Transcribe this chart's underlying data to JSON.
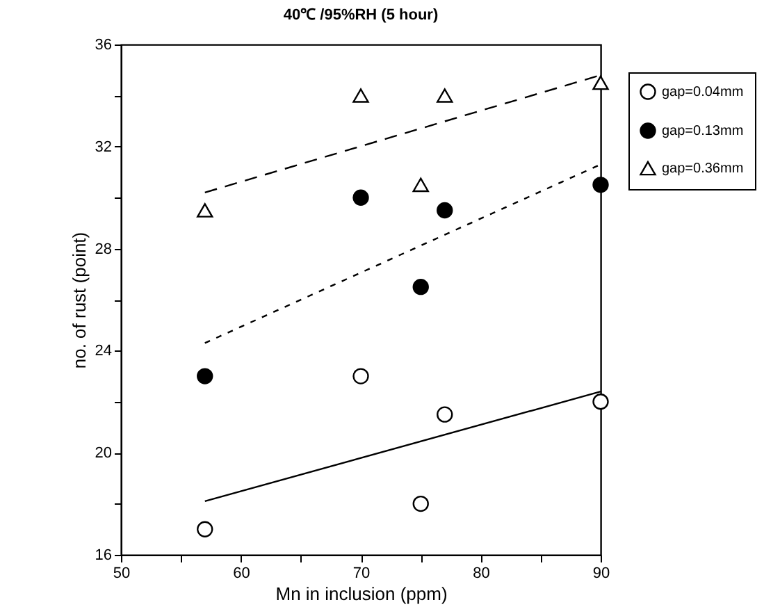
{
  "chart_data": {
    "type": "scatter",
    "title": "40℃ /95%RH (5 hour)",
    "xlabel": "Mn in inclusion (ppm)",
    "ylabel": "no. of rust (point)",
    "xlim": [
      50,
      90
    ],
    "ylim": [
      16,
      36
    ],
    "xticks": [
      50,
      {
        "value": 55,
        "label": null
      },
      60,
      {
        "value": 65,
        "label": null
      },
      70,
      {
        "value": 75,
        "label": null
      },
      80,
      {
        "value": 85,
        "label": null
      },
      90
    ],
    "yticks": [
      16,
      {
        "value": 18,
        "label": null
      },
      20,
      {
        "value": 22,
        "label": null
      },
      24,
      {
        "value": 26,
        "label": null
      },
      28,
      {
        "value": 30,
        "label": null
      },
      32,
      {
        "value": 34,
        "label": null
      },
      36
    ],
    "grid": false,
    "legend": "right",
    "series": [
      {
        "name": "gap=0.04mm",
        "marker": "circle",
        "color": "#ffffff",
        "x": [
          57,
          70,
          75,
          77,
          90
        ],
        "values": [
          17,
          23,
          18,
          21.5,
          22
        ]
      },
      {
        "name": "gap=0.13mm",
        "marker": "circle",
        "color": "#000000",
        "x": [
          57,
          70,
          75,
          77,
          90
        ],
        "values": [
          23,
          30,
          26.5,
          29.5,
          30.5
        ]
      },
      {
        "name": "gap=0.36mm",
        "marker": "triangle",
        "color": "#ffffff",
        "x": [
          57,
          70,
          75,
          77,
          90
        ],
        "values": [
          29.5,
          34,
          30.5,
          34,
          34.5
        ]
      },
      {
        "type": "line",
        "line_style": "solid",
        "color": "#000000",
        "x": [
          57,
          90
        ],
        "values": [
          18.1,
          22.4
        ]
      },
      {
        "type": "line",
        "line_style": "dotted",
        "color": "#000000",
        "x": [
          57,
          90
        ],
        "values": [
          24.3,
          31.3
        ]
      },
      {
        "type": "line",
        "line_style": "dashed",
        "color": "#000000",
        "x": [
          57,
          90
        ],
        "values": [
          30.2,
          34.8
        ]
      }
    ]
  }
}
